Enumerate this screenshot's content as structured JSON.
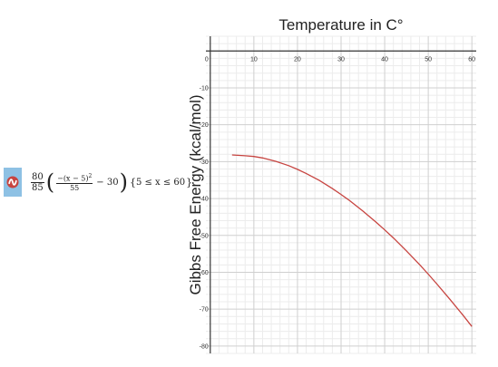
{
  "expression": {
    "icon": "desmos-logo-icon",
    "coef_num": "80",
    "coef_den": "85",
    "inner_num": "−(x − 5)",
    "inner_exp": "2",
    "inner_den": "55",
    "minus_term": "− 30",
    "domain": "5 ≤ x ≤ 60",
    "icon_color": "#8ec1e4"
  },
  "chart_data": {
    "type": "line",
    "title": "Temperature in C°",
    "xlabel": "",
    "ylabel": "Gibbs Free Energy (kcal/mol)",
    "xlim": [
      -1,
      61
    ],
    "ylim": [
      -82,
      4
    ],
    "x_ticks": [
      0,
      10,
      20,
      30,
      40,
      50,
      60
    ],
    "y_ticks": [
      -10,
      -20,
      -30,
      -40,
      -50,
      -60,
      -70,
      -80
    ],
    "grid": true,
    "series": [
      {
        "color": "#c74440",
        "x": [
          5,
          8,
          10,
          12,
          15,
          18,
          20,
          22,
          25,
          28,
          30,
          32,
          35,
          38,
          40,
          42,
          45,
          48,
          50,
          52,
          55,
          58,
          60
        ],
        "y": [
          -28.2,
          -28.4,
          -28.6,
          -29.0,
          -29.9,
          -31.1,
          -32.1,
          -33.2,
          -35.1,
          -37.3,
          -38.9,
          -40.6,
          -43.4,
          -46.4,
          -48.5,
          -50.7,
          -54.2,
          -57.9,
          -60.5,
          -63.2,
          -67.4,
          -71.7,
          -74.7
        ]
      }
    ]
  }
}
